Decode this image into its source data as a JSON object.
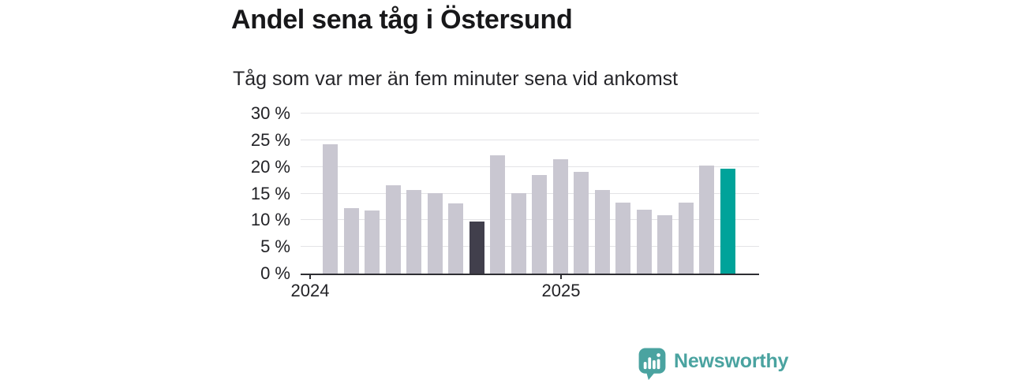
{
  "header": {
    "title": "Andel sena tåg i Östersund",
    "subtitle": "Tåg som var mer än fem minuter sena vid ankomst"
  },
  "chart_data": {
    "type": "bar",
    "title": "Andel sena tåg i Östersund",
    "subtitle": "Tåg som var mer än fem minuter sena vid ankomst",
    "unit": "%",
    "categories": [
      "2024-01",
      "2024-02",
      "2024-03",
      "2024-04",
      "2024-05",
      "2024-06",
      "2024-07",
      "2024-08",
      "2024-09",
      "2024-10",
      "2024-11",
      "2024-12",
      "2025-01",
      "2025-02",
      "2025-03",
      "2025-04",
      "2025-05",
      "2025-06",
      "2025-07",
      "2025-08"
    ],
    "values": [
      24.2,
      12.3,
      11.8,
      16.5,
      15.6,
      15.1,
      13.1,
      9.8,
      22.1,
      15.0,
      18.5,
      21.5,
      19.0,
      15.6,
      13.3,
      11.9,
      10.9,
      13.3,
      20.2,
      19.7
    ],
    "ylim": [
      0,
      30
    ],
    "yticks": [
      0,
      5,
      10,
      15,
      20,
      25,
      30
    ],
    "y_tick_labels": [
      "0 %",
      "5 %",
      "10 %",
      "15 %",
      "20 %",
      "25 %",
      "30 %"
    ],
    "x_year_ticks": [
      {
        "label": "2024",
        "month_index": 0
      },
      {
        "label": "2025",
        "month_index": 12
      }
    ],
    "grid": true,
    "legend": "none",
    "colors": {
      "default_bar": "#c9c7d1",
      "highlight_dark": "#413f4c",
      "highlight_teal": "#00a39a",
      "gridline": "#e3e3e6",
      "axis": "#2e2e33",
      "text": "#222226"
    },
    "highlight": {
      "7": "#413f4c",
      "19": "#00a39a"
    }
  },
  "footer": {
    "brand": "Newsworthy",
    "brand_color": "#4aa3a0",
    "logo_icon": "newsworthy-speech-bubble-bar-chart-icon"
  }
}
